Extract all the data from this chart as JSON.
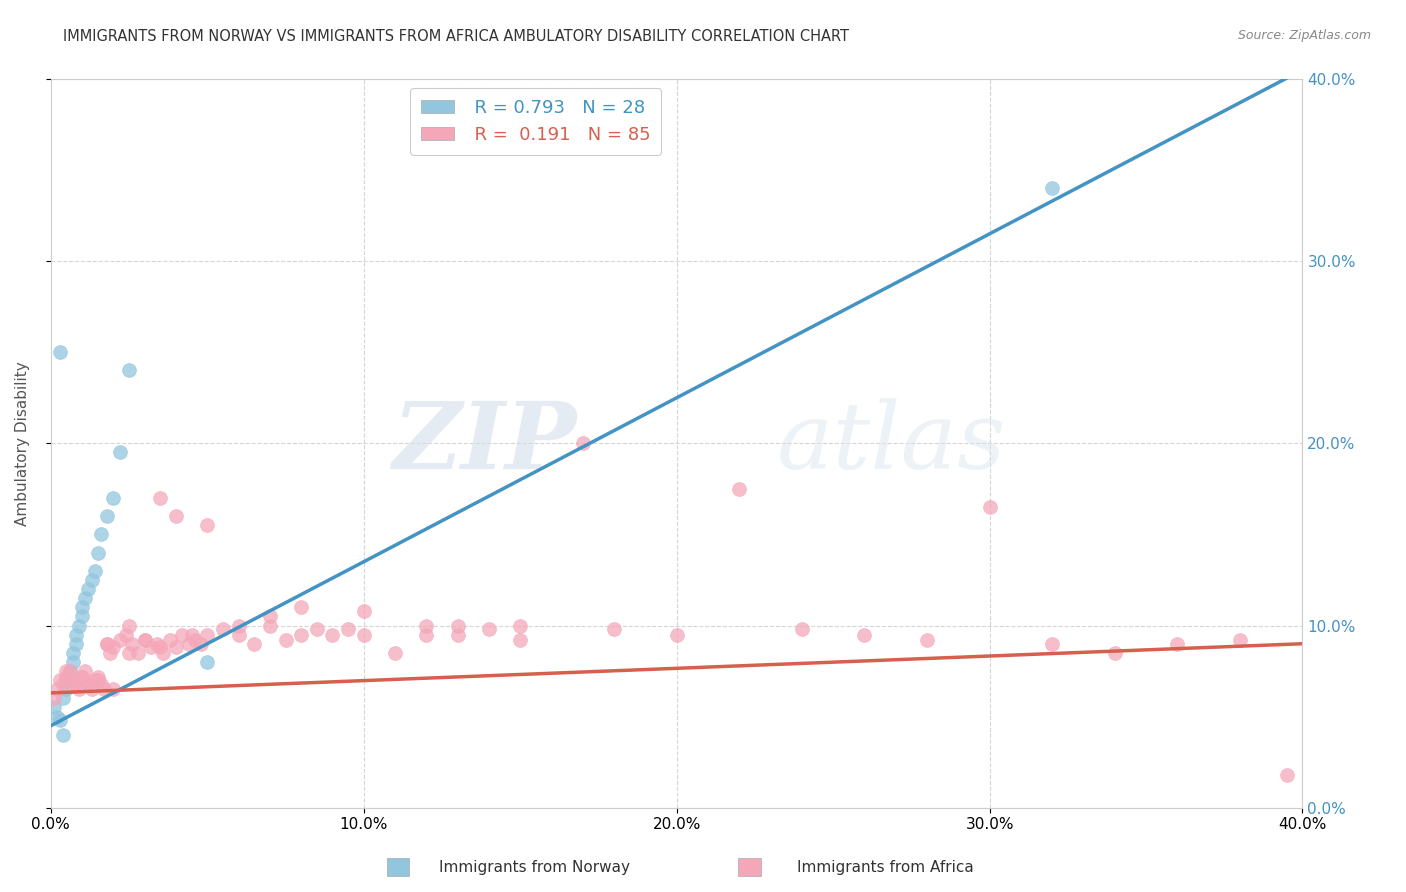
{
  "title": "IMMIGRANTS FROM NORWAY VS IMMIGRANTS FROM AFRICA AMBULATORY DISABILITY CORRELATION CHART",
  "source": "Source: ZipAtlas.com",
  "ylabel": "Ambulatory Disability",
  "xlim": [
    0.0,
    0.4
  ],
  "ylim": [
    0.0,
    0.4
  ],
  "norway_r": 0.793,
  "norway_n": 28,
  "africa_r": 0.191,
  "africa_n": 85,
  "norway_color": "#92c5de",
  "africa_color": "#f4a7b9",
  "norway_line_color": "#4393c3",
  "africa_line_color": "#d6604d",
  "norway_x": [
    0.001,
    0.002,
    0.003,
    0.004,
    0.005,
    0.005,
    0.006,
    0.007,
    0.007,
    0.008,
    0.008,
    0.009,
    0.01,
    0.01,
    0.011,
    0.012,
    0.013,
    0.014,
    0.015,
    0.016,
    0.018,
    0.02,
    0.022,
    0.025,
    0.003,
    0.004,
    0.32,
    0.05
  ],
  "norway_y": [
    0.055,
    0.05,
    0.048,
    0.06,
    0.065,
    0.07,
    0.075,
    0.08,
    0.085,
    0.09,
    0.095,
    0.1,
    0.105,
    0.11,
    0.115,
    0.12,
    0.125,
    0.13,
    0.14,
    0.15,
    0.16,
    0.17,
    0.195,
    0.24,
    0.25,
    0.04,
    0.34,
    0.08
  ],
  "africa_x": [
    0.001,
    0.002,
    0.003,
    0.004,
    0.005,
    0.006,
    0.007,
    0.008,
    0.009,
    0.01,
    0.011,
    0.012,
    0.013,
    0.014,
    0.015,
    0.016,
    0.017,
    0.018,
    0.019,
    0.02,
    0.022,
    0.024,
    0.026,
    0.028,
    0.03,
    0.032,
    0.034,
    0.036,
    0.038,
    0.04,
    0.042,
    0.044,
    0.046,
    0.048,
    0.05,
    0.055,
    0.06,
    0.065,
    0.07,
    0.075,
    0.08,
    0.085,
    0.09,
    0.095,
    0.1,
    0.11,
    0.12,
    0.13,
    0.14,
    0.15,
    0.005,
    0.008,
    0.01,
    0.012,
    0.015,
    0.018,
    0.02,
    0.025,
    0.03,
    0.035,
    0.04,
    0.05,
    0.06,
    0.07,
    0.08,
    0.1,
    0.12,
    0.15,
    0.18,
    0.2,
    0.22,
    0.24,
    0.26,
    0.28,
    0.3,
    0.32,
    0.34,
    0.36,
    0.38,
    0.395,
    0.025,
    0.035,
    0.045,
    0.13,
    0.17
  ],
  "africa_y": [
    0.06,
    0.065,
    0.07,
    0.068,
    0.072,
    0.075,
    0.068,
    0.07,
    0.065,
    0.072,
    0.075,
    0.068,
    0.065,
    0.07,
    0.072,
    0.068,
    0.065,
    0.09,
    0.085,
    0.065,
    0.092,
    0.095,
    0.09,
    0.085,
    0.092,
    0.088,
    0.09,
    0.085,
    0.092,
    0.088,
    0.095,
    0.09,
    0.092,
    0.09,
    0.095,
    0.098,
    0.095,
    0.09,
    0.1,
    0.092,
    0.095,
    0.098,
    0.095,
    0.098,
    0.095,
    0.085,
    0.1,
    0.095,
    0.098,
    0.092,
    0.075,
    0.068,
    0.072,
    0.068,
    0.07,
    0.09,
    0.088,
    0.085,
    0.092,
    0.088,
    0.16,
    0.155,
    0.1,
    0.105,
    0.11,
    0.108,
    0.095,
    0.1,
    0.098,
    0.095,
    0.175,
    0.098,
    0.095,
    0.092,
    0.165,
    0.09,
    0.085,
    0.09,
    0.092,
    0.018,
    0.1,
    0.17,
    0.095,
    0.1,
    0.2
  ],
  "norway_line_x0": 0.0,
  "norway_line_y0": 0.045,
  "norway_line_x1": 0.4,
  "norway_line_y1": 0.405,
  "africa_line_x0": 0.0,
  "africa_line_y0": 0.063,
  "africa_line_x1": 0.4,
  "africa_line_y1": 0.09,
  "watermark_zip": "ZIP",
  "watermark_atlas": "atlas",
  "background_color": "#ffffff",
  "grid_color": "#cccccc",
  "title_fontsize": 10.5,
  "source_fontsize": 9,
  "axis_fontsize": 11,
  "legend_fontsize": 13
}
